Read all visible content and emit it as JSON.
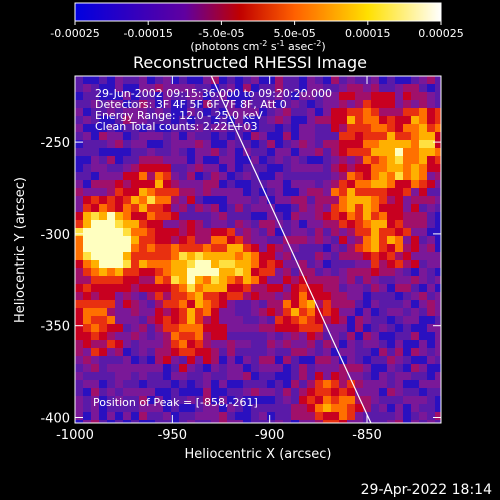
{
  "chart_data": {
    "type": "heatmap",
    "title": "Reconstructed RHESSI Image",
    "xlabel": "Heliocentric X (arcsec)",
    "ylabel": "Heliocentric Y (arcsec)",
    "xlim": [
      -1000,
      -812
    ],
    "ylim": [
      -403,
      -214
    ],
    "x_ticks": [
      -1000,
      -950,
      -900,
      -850
    ],
    "y_ticks": [
      -250,
      -300,
      -350,
      -400
    ],
    "x_tick_labels": [
      "-1000",
      "-950",
      "-900",
      "-850"
    ],
    "y_tick_labels": [
      "-250",
      "-300",
      "-350",
      "-400"
    ],
    "colorbar": {
      "range": [
        -0.00025,
        0.00025
      ],
      "tick_values": [
        -0.00025,
        -0.00015,
        -5e-05,
        5e-05,
        0.00015,
        0.00025
      ],
      "tick_labels": [
        "-0.00025",
        "-0.00015",
        "-5.0e-05",
        "5.0e-05",
        "0.00015",
        "0.00025"
      ],
      "colors": [
        "#0000e0",
        "#6000a0",
        "#c00000",
        "#ff6000",
        "#ffe000",
        "#ffffff"
      ],
      "units_prefix": "(photons cm",
      "units_exp1": "-2",
      "units_mid": " s",
      "units_exp2": "-1",
      "units_mid2": " asec",
      "units_exp3": "-2",
      "units_suffix": ")"
    },
    "annotations": [
      "29-Jun-2002 09:15:36.000 to 09:20:20.000",
      "Detectors: 3F 4F 5F 6F 7F 8F, Att 0",
      "Energy Range: 12.0 - 25.0 keV",
      "Clean     Total counts: 2.22E+03"
    ],
    "peak_label": "Position of Peak = [-858,-261]",
    "peak_position": [
      -858,
      -261
    ],
    "limb_line": [
      [
        -930,
        -214
      ],
      [
        -848,
        -403
      ]
    ]
  },
  "footer": {
    "timestamp": "29-Apr-2022 18:14"
  }
}
